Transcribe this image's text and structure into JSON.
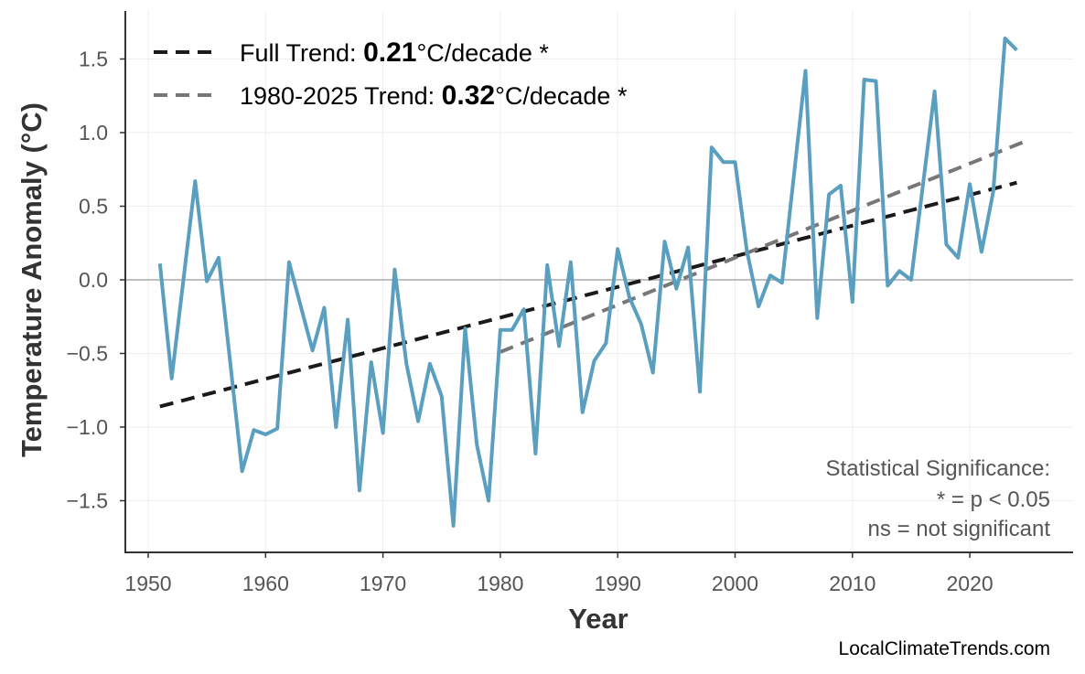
{
  "chart_data": {
    "type": "line",
    "title": "",
    "xlabel": "Year",
    "ylabel": "Temperature Anomaly (°C)",
    "xlim": [
      1947.5,
      2028.5
    ],
    "ylim": [
      -1.83,
      1.83
    ],
    "xticks": [
      1950,
      1960,
      1970,
      1980,
      1990,
      2000,
      2010,
      2020
    ],
    "yticks": [
      -1.5,
      -1.0,
      -0.5,
      0.0,
      0.5,
      1.0,
      1.5
    ],
    "ytick_labels": [
      "−1.5",
      "−1.0",
      "−0.5",
      "0.0",
      "0.5",
      "1.0",
      "1.5"
    ],
    "grid": true,
    "zero_line": true,
    "series": [
      {
        "color": "#5a9fc0",
        "x": [
          1951,
          1952,
          1953,
          1954,
          1955,
          1956,
          1957,
          1958,
          1959,
          1960,
          1961,
          1962,
          1963,
          1964,
          1965,
          1966,
          1967,
          1968,
          1969,
          1970,
          1971,
          1972,
          1973,
          1974,
          1975,
          1976,
          1977,
          1978,
          1979,
          1980,
          1981,
          1982,
          1983,
          1984,
          1985,
          1986,
          1987,
          1988,
          1989,
          1990,
          1991,
          1992,
          1993,
          1994,
          1995,
          1996,
          1997,
          1998,
          1999,
          2000,
          2001,
          2002,
          2003,
          2004,
          2005,
          2006,
          2007,
          2008,
          2009,
          2010,
          2011,
          2012,
          2013,
          2014,
          2015,
          2016,
          2017,
          2018,
          2019,
          2020,
          2021,
          2022,
          2023,
          2024
        ],
        "values": [
          0.11,
          -0.67,
          0.0,
          0.67,
          -0.01,
          0.15,
          -0.57,
          -1.3,
          -1.02,
          -1.05,
          -1.01,
          0.12,
          -0.18,
          -0.48,
          -0.19,
          -1.0,
          -0.27,
          -1.43,
          -0.56,
          -1.04,
          0.07,
          -0.57,
          -0.96,
          -0.57,
          -0.79,
          -1.67,
          -0.33,
          -1.12,
          -1.5,
          -0.34,
          -0.34,
          -0.2,
          -1.18,
          0.1,
          -0.45,
          0.12,
          -0.9,
          -0.55,
          -0.43,
          0.21,
          -0.12,
          -0.3,
          -0.63,
          0.26,
          -0.06,
          0.22,
          -0.76,
          0.9,
          0.8,
          0.8,
          0.2,
          -0.18,
          0.03,
          -0.02,
          0.7,
          1.42,
          -0.26,
          0.58,
          0.64,
          -0.15,
          1.36,
          1.35,
          -0.04,
          0.06,
          0.0,
          0.64,
          1.28,
          0.24,
          0.15,
          0.65,
          0.19,
          0.6,
          1.64,
          1.56
        ]
      }
    ],
    "trends": [
      {
        "label_prefix": "Full Trend: ",
        "rate": "0.21",
        "label_suffix": "°C/decade *",
        "color": "#1a1a1a",
        "x": [
          1951,
          2024
        ],
        "values": [
          -0.86,
          0.66
        ]
      },
      {
        "label_prefix": "1980-2025 Trend: ",
        "rate": "0.32",
        "label_suffix": "°C/decade *",
        "color": "#777777",
        "x": [
          1980,
          2025
        ],
        "values": [
          -0.49,
          0.95
        ]
      }
    ],
    "legend_position": "top-left",
    "annotation": [
      "Statistical Significance:",
      "* = p < 0.05",
      "ns = not significant"
    ]
  },
  "watermark": "LocalClimateTrends.com"
}
